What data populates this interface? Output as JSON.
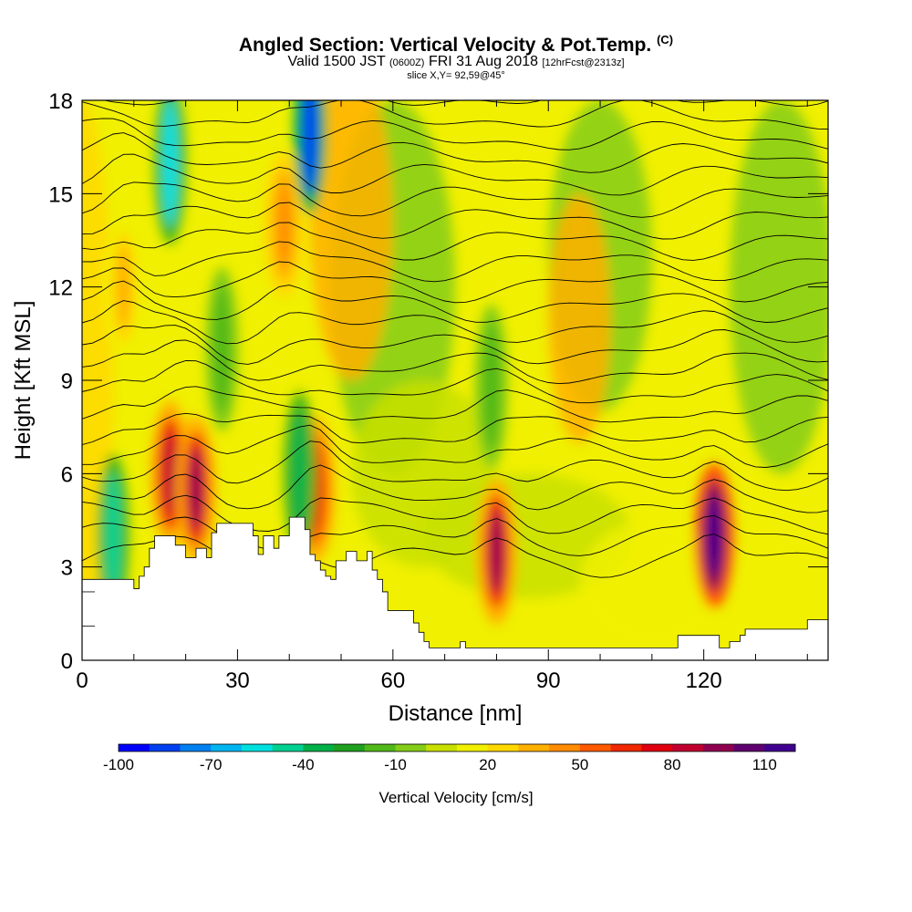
{
  "header": {
    "title": "Angled Section: Vertical Velocity & Pot.Temp.",
    "title_tag": "(C)",
    "valid_prefix": "Valid 1500 JST",
    "valid_zulu": "(0600Z)",
    "valid_date": "FRI 31 Aug 2018",
    "forecast": "[12hrFcst@2313z]",
    "slice": "slice X,Y= 92,59@45°"
  },
  "chart_data": {
    "type": "heatmap",
    "xlabel": "Distance [nm]",
    "ylabel": "Height [Kft MSL]",
    "xlim": [
      0,
      144
    ],
    "ylim": [
      0,
      18
    ],
    "x_ticks": [
      0,
      30,
      60,
      90,
      120
    ],
    "y_ticks": [
      0,
      3,
      6,
      9,
      12,
      15,
      18
    ],
    "colorbar": {
      "label": "Vertical Velocity [cm/s]",
      "min": -100,
      "max": 120,
      "step": 10,
      "tick_labels": [
        "-100",
        "-70",
        "-40",
        "-10",
        "20",
        "50",
        "80",
        "110"
      ],
      "colors": [
        "#0000ff",
        "#0040f0",
        "#0080f0",
        "#00b4f0",
        "#00e0e0",
        "#00d090",
        "#00b048",
        "#20a020",
        "#50b818",
        "#84cc18",
        "#c8e000",
        "#f0f000",
        "#ffd800",
        "#ffb000",
        "#ff8c00",
        "#ff5a00",
        "#f02800",
        "#e00010",
        "#c00030",
        "#900050",
        "#600070",
        "#400090"
      ]
    },
    "updrafts": [
      {
        "x": 17,
        "z": 6,
        "value": 80
      },
      {
        "x": 22,
        "z": 5.5,
        "value": 85
      },
      {
        "x": 45,
        "z": 5.5,
        "value": 65
      },
      {
        "x": 80,
        "z": 3.5,
        "value": 85
      },
      {
        "x": 122,
        "z": 4,
        "value": 115
      },
      {
        "x": 39,
        "z": 14,
        "value": 40
      },
      {
        "x": 8,
        "z": 12,
        "value": 30
      }
    ],
    "downdrafts": [
      {
        "x": 6,
        "z": 4,
        "value": -50
      },
      {
        "x": 17,
        "z": 16,
        "value": -60
      },
      {
        "x": 44,
        "z": 17,
        "value": -90
      },
      {
        "x": 42,
        "z": 6,
        "value": -40
      },
      {
        "x": 79,
        "z": 8.8,
        "value": -20
      },
      {
        "x": 27,
        "z": 10,
        "value": -20
      }
    ],
    "terrain": [
      [
        0,
        2.6
      ],
      [
        9,
        2.6
      ],
      [
        10,
        2.3
      ],
      [
        11,
        2.7
      ],
      [
        12,
        3
      ],
      [
        13,
        3.6
      ],
      [
        14,
        4
      ],
      [
        15,
        4
      ],
      [
        18,
        3.7
      ],
      [
        20,
        3.3
      ],
      [
        22,
        3.6
      ],
      [
        24,
        3.3
      ],
      [
        25,
        4.1
      ],
      [
        26,
        4.4
      ],
      [
        32,
        4.4
      ],
      [
        33,
        4
      ],
      [
        34,
        3.4
      ],
      [
        35,
        4
      ],
      [
        37,
        3.6
      ],
      [
        38,
        4
      ],
      [
        40,
        4.6
      ],
      [
        42,
        4.6
      ],
      [
        43,
        4.2
      ],
      [
        44,
        3.4
      ],
      [
        45,
        3.2
      ],
      [
        46,
        2.9
      ],
      [
        47,
        2.7
      ],
      [
        48,
        2.6
      ],
      [
        49,
        3.2
      ],
      [
        51,
        3.5
      ],
      [
        53,
        3.2
      ],
      [
        55,
        3.5
      ],
      [
        56,
        2.9
      ],
      [
        57,
        2.6
      ],
      [
        58,
        2.2
      ],
      [
        59,
        1.6
      ],
      [
        63,
        1.6
      ],
      [
        64,
        1.2
      ],
      [
        65,
        0.9
      ],
      [
        66,
        0.6
      ],
      [
        67,
        0.4
      ],
      [
        72,
        0.4
      ],
      [
        73,
        0.6
      ],
      [
        74,
        0.4
      ],
      [
        114,
        0.4
      ],
      [
        115,
        0.8
      ],
      [
        122,
        0.8
      ],
      [
        123,
        0.4
      ],
      [
        124,
        0.4
      ],
      [
        125,
        0.6
      ],
      [
        126,
        0.6
      ],
      [
        127,
        0.8
      ],
      [
        128,
        1
      ],
      [
        139,
        1
      ],
      [
        140,
        1.3
      ],
      [
        144,
        1.3
      ]
    ]
  }
}
